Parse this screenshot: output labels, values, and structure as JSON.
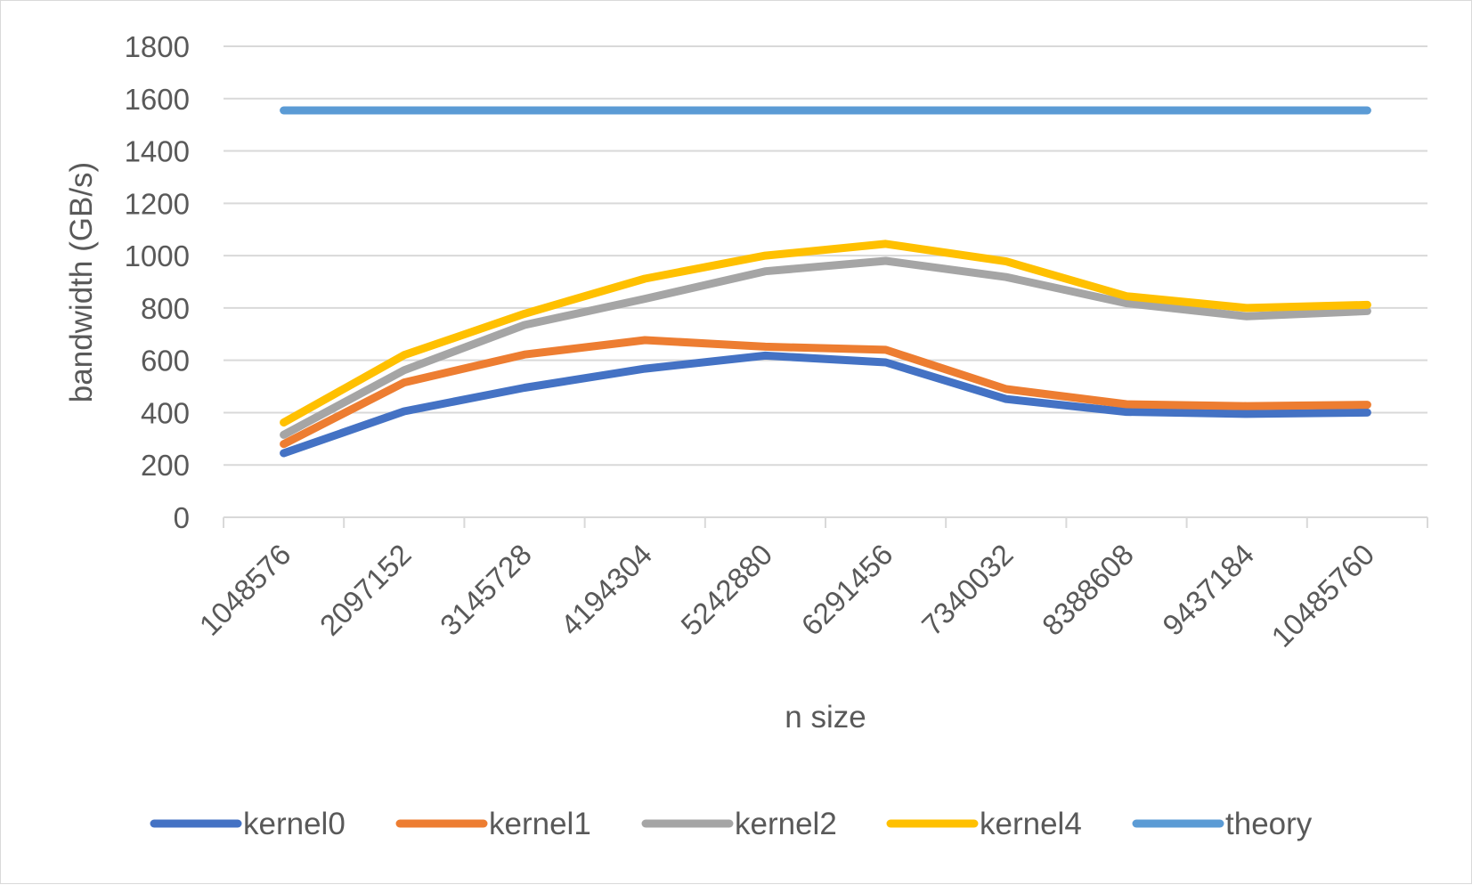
{
  "chart_data": {
    "type": "line",
    "title": "",
    "xlabel": "n size",
    "ylabel": "bandwidth (GB/s)",
    "ylim": [
      0,
      1800
    ],
    "yticks": [
      0,
      200,
      400,
      600,
      800,
      1000,
      1200,
      1400,
      1600,
      1800
    ],
    "grid": "horizontal",
    "legend_position": "bottom",
    "categories": [
      "1048576",
      "2097152",
      "3145728",
      "4194304",
      "5242880",
      "6291456",
      "7340032",
      "8388608",
      "9437184",
      "10485760"
    ],
    "series": [
      {
        "name": "kernel0",
        "color": "#4472C4",
        "values": [
          245,
          405,
          495,
          568,
          618,
          592,
          452,
          403,
          395,
          400
        ]
      },
      {
        "name": "kernel1",
        "color": "#ED7D31",
        "values": [
          280,
          515,
          622,
          677,
          652,
          640,
          490,
          432,
          425,
          430
        ]
      },
      {
        "name": "kernel2",
        "color": "#A5A5A5",
        "values": [
          315,
          562,
          735,
          835,
          940,
          980,
          918,
          818,
          768,
          788
        ]
      },
      {
        "name": "kernel4",
        "color": "#FFC000",
        "values": [
          362,
          620,
          778,
          912,
          1000,
          1045,
          978,
          845,
          800,
          812
        ]
      },
      {
        "name": "theory",
        "color": "#5B9BD5",
        "values": [
          1555,
          1555,
          1555,
          1555,
          1555,
          1555,
          1555,
          1555,
          1555,
          1555
        ]
      }
    ]
  }
}
